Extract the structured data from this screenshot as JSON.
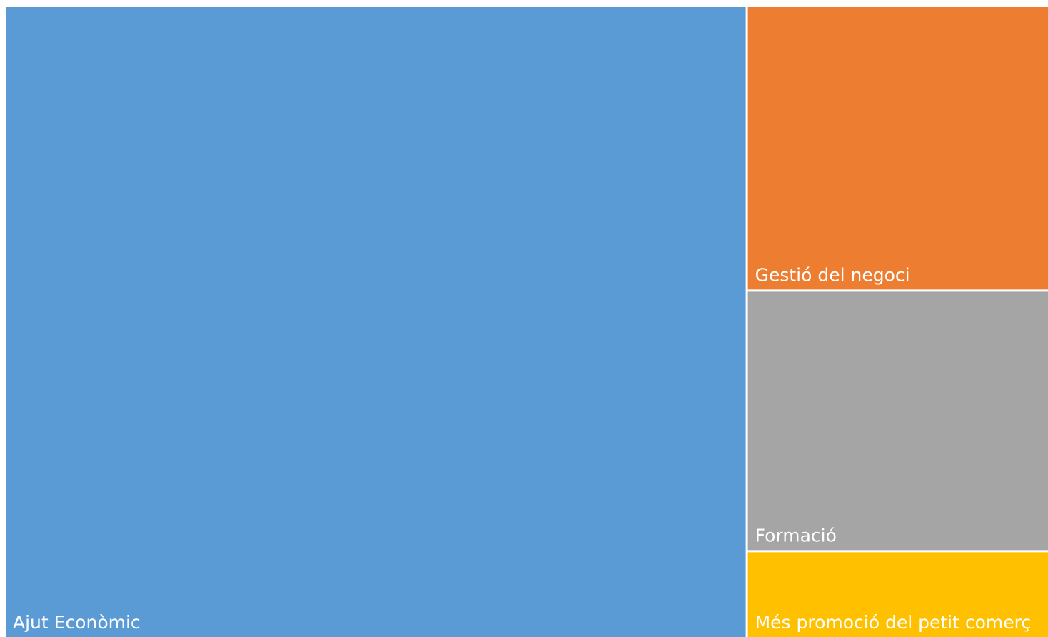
{
  "chart_data": {
    "type": "treemap",
    "categories": [
      "Ajut Econòmic",
      "Gestió del negoci",
      "Formació",
      "Més promoció del petit comerç"
    ],
    "values": [
      71,
      13,
      12,
      4
    ],
    "colors": [
      "#5b9bd5",
      "#ed7d31",
      "#a5a5a5",
      "#ffc000"
    ]
  }
}
